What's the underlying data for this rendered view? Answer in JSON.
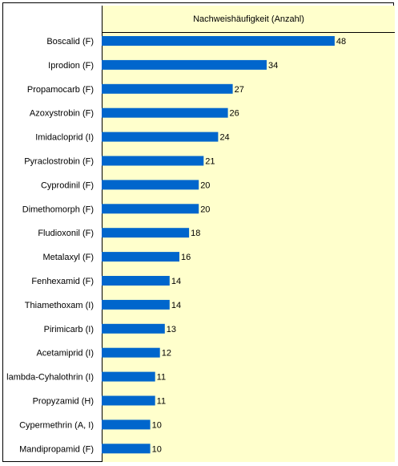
{
  "chart_data": {
    "type": "bar",
    "orientation": "horizontal",
    "header": "Nachweishäufigkeit (Anzahl)",
    "categories": [
      "Boscalid (F)",
      "Iprodion (F)",
      "Propamocarb (F)",
      "Azoxystrobin (F)",
      "Imidacloprid (I)",
      "Pyraclostrobin (F)",
      "Cyprodinil (F)",
      "Dimethomorph (F)",
      "Fludioxonil (F)",
      "Metalaxyl (F)",
      "Fenhexamid (F)",
      "Thiamethoxam (I)",
      "Pirimicarb (I)",
      "Acetamiprid (I)",
      "lambda-Cyhalothrin (I)",
      "Propyzamid (H)",
      "Cypermethrin (A, I)",
      "Mandipropamid (F)"
    ],
    "values": [
      48,
      34,
      27,
      26,
      24,
      21,
      20,
      20,
      18,
      16,
      14,
      14,
      13,
      12,
      11,
      11,
      10,
      10
    ],
    "xlim": [
      0,
      60
    ],
    "bar_color": "#0066cc",
    "plot_background": "#ffffcc",
    "grid": false,
    "legend": "none"
  }
}
